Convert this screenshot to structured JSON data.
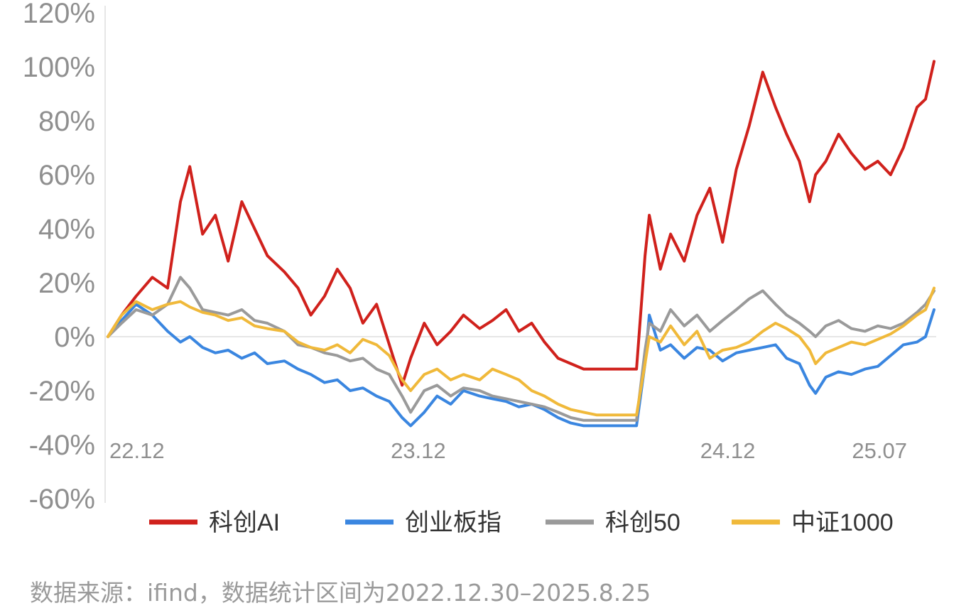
{
  "chart_data": {
    "type": "line",
    "x_ticks": [
      "22.12",
      "23.12",
      "24.12",
      "25.07"
    ],
    "y_ticks": [
      "120%",
      "100%",
      "80%",
      "60%",
      "40%",
      "20%",
      "0%",
      "-20%",
      "-40%",
      "-60%"
    ],
    "ylim": [
      -60,
      120
    ],
    "xlim": [
      "2022-12-30",
      "2025-08-25"
    ],
    "grid": false,
    "legend_position": "bottom",
    "series": [
      {
        "name": "科创AI",
        "color": "#d0211c",
        "x": [
          "2022-12-30",
          "2023-01-15",
          "2023-02-01",
          "2023-02-20",
          "2023-03-10",
          "2023-03-25",
          "2023-04-05",
          "2023-04-20",
          "2023-05-05",
          "2023-05-20",
          "2023-06-05",
          "2023-06-20",
          "2023-07-05",
          "2023-07-25",
          "2023-08-10",
          "2023-08-25",
          "2023-09-10",
          "2023-09-25",
          "2023-10-10",
          "2023-10-25",
          "2023-11-10",
          "2023-11-25",
          "2023-12-10",
          "2023-12-20",
          "2024-01-05",
          "2024-01-20",
          "2024-02-05",
          "2024-02-20",
          "2024-03-10",
          "2024-03-25",
          "2024-04-10",
          "2024-04-25",
          "2024-05-10",
          "2024-05-25",
          "2024-06-10",
          "2024-06-25",
          "2024-07-10",
          "2024-07-25",
          "2024-08-10",
          "2024-08-25",
          "2024-09-10",
          "2024-09-20",
          "2024-09-25",
          "2024-10-08",
          "2024-10-20",
          "2024-11-05",
          "2024-11-20",
          "2024-12-05",
          "2024-12-20",
          "2025-01-05",
          "2025-01-20",
          "2025-02-05",
          "2025-02-20",
          "2025-03-05",
          "2025-03-20",
          "2025-04-01",
          "2025-04-08",
          "2025-04-20",
          "2025-05-05",
          "2025-05-20",
          "2025-06-05",
          "2025-06-20",
          "2025-07-05",
          "2025-07-20",
          "2025-08-05",
          "2025-08-15",
          "2025-08-25"
        ],
        "values": [
          0,
          8,
          15,
          22,
          18,
          50,
          63,
          38,
          45,
          28,
          50,
          40,
          30,
          24,
          18,
          8,
          15,
          25,
          18,
          5,
          12,
          -3,
          -18,
          -8,
          5,
          -3,
          2,
          8,
          3,
          6,
          10,
          2,
          5,
          -2,
          -8,
          -10,
          -12,
          -12,
          -12,
          -12,
          -12,
          30,
          45,
          25,
          38,
          28,
          45,
          55,
          35,
          62,
          78,
          98,
          85,
          75,
          65,
          50,
          60,
          65,
          75,
          68,
          62,
          65,
          60,
          70,
          85,
          88,
          102
        ]
      },
      {
        "name": "创业板指",
        "color": "#3a86e0",
        "x": [
          "2022-12-30",
          "2023-01-15",
          "2023-02-01",
          "2023-02-20",
          "2023-03-10",
          "2023-03-25",
          "2023-04-05",
          "2023-04-20",
          "2023-05-05",
          "2023-05-20",
          "2023-06-05",
          "2023-06-20",
          "2023-07-05",
          "2023-07-25",
          "2023-08-10",
          "2023-08-25",
          "2023-09-10",
          "2023-09-25",
          "2023-10-10",
          "2023-10-25",
          "2023-11-10",
          "2023-11-25",
          "2023-12-10",
          "2023-12-20",
          "2024-01-05",
          "2024-01-20",
          "2024-02-05",
          "2024-02-20",
          "2024-03-10",
          "2024-03-25",
          "2024-04-10",
          "2024-04-25",
          "2024-05-10",
          "2024-05-25",
          "2024-06-10",
          "2024-06-25",
          "2024-07-10",
          "2024-07-25",
          "2024-08-10",
          "2024-08-25",
          "2024-09-10",
          "2024-09-20",
          "2024-09-25",
          "2024-10-08",
          "2024-10-20",
          "2024-11-05",
          "2024-11-20",
          "2024-12-05",
          "2024-12-20",
          "2025-01-05",
          "2025-01-20",
          "2025-02-05",
          "2025-02-20",
          "2025-03-05",
          "2025-03-20",
          "2025-04-01",
          "2025-04-08",
          "2025-04-20",
          "2025-05-05",
          "2025-05-20",
          "2025-06-05",
          "2025-06-20",
          "2025-07-05",
          "2025-07-20",
          "2025-08-05",
          "2025-08-15",
          "2025-08-25"
        ],
        "values": [
          0,
          6,
          12,
          8,
          2,
          -2,
          0,
          -4,
          -6,
          -5,
          -8,
          -6,
          -10,
          -9,
          -12,
          -14,
          -17,
          -16,
          -20,
          -19,
          -22,
          -24,
          -30,
          -33,
          -28,
          -22,
          -25,
          -20,
          -22,
          -23,
          -24,
          -26,
          -25,
          -27,
          -30,
          -32,
          -33,
          -33,
          -33,
          -33,
          -33,
          -10,
          8,
          -5,
          -3,
          -8,
          -4,
          -5,
          -9,
          -6,
          -5,
          -4,
          -3,
          -8,
          -10,
          -18,
          -21,
          -15,
          -13,
          -14,
          -12,
          -11,
          -7,
          -3,
          -2,
          0,
          10
        ]
      },
      {
        "name": "科创50",
        "color": "#9a9a9a",
        "x": [
          "2022-12-30",
          "2023-01-15",
          "2023-02-01",
          "2023-02-20",
          "2023-03-10",
          "2023-03-25",
          "2023-04-05",
          "2023-04-20",
          "2023-05-05",
          "2023-05-20",
          "2023-06-05",
          "2023-06-20",
          "2023-07-05",
          "2023-07-25",
          "2023-08-10",
          "2023-08-25",
          "2023-09-10",
          "2023-09-25",
          "2023-10-10",
          "2023-10-25",
          "2023-11-10",
          "2023-11-25",
          "2023-12-10",
          "2023-12-20",
          "2024-01-05",
          "2024-01-20",
          "2024-02-05",
          "2024-02-20",
          "2024-03-10",
          "2024-03-25",
          "2024-04-10",
          "2024-04-25",
          "2024-05-10",
          "2024-05-25",
          "2024-06-10",
          "2024-06-25",
          "2024-07-10",
          "2024-07-25",
          "2024-08-10",
          "2024-08-25",
          "2024-09-10",
          "2024-09-20",
          "2024-09-25",
          "2024-10-08",
          "2024-10-20",
          "2024-11-05",
          "2024-11-20",
          "2024-12-05",
          "2024-12-20",
          "2025-01-05",
          "2025-01-20",
          "2025-02-05",
          "2025-02-20",
          "2025-03-05",
          "2025-03-20",
          "2025-04-01",
          "2025-04-08",
          "2025-04-20",
          "2025-05-05",
          "2025-05-20",
          "2025-06-05",
          "2025-06-20",
          "2025-07-05",
          "2025-07-20",
          "2025-08-05",
          "2025-08-15",
          "2025-08-25"
        ],
        "values": [
          0,
          5,
          10,
          8,
          12,
          22,
          18,
          10,
          9,
          8,
          10,
          6,
          5,
          2,
          -3,
          -4,
          -6,
          -7,
          -9,
          -8,
          -12,
          -14,
          -22,
          -28,
          -20,
          -18,
          -22,
          -19,
          -20,
          -22,
          -23,
          -24,
          -25,
          -26,
          -28,
          -30,
          -31,
          -31,
          -31,
          -31,
          -31,
          -5,
          5,
          2,
          10,
          4,
          8,
          2,
          6,
          10,
          14,
          17,
          12,
          8,
          5,
          2,
          0,
          4,
          6,
          3,
          2,
          4,
          3,
          5,
          9,
          12,
          17
        ]
      },
      {
        "name": "中证1000",
        "color": "#f0b93a",
        "x": [
          "2022-12-30",
          "2023-01-15",
          "2023-02-01",
          "2023-02-20",
          "2023-03-10",
          "2023-03-25",
          "2023-04-05",
          "2023-04-20",
          "2023-05-05",
          "2023-05-20",
          "2023-06-05",
          "2023-06-20",
          "2023-07-05",
          "2023-07-25",
          "2023-08-10",
          "2023-08-25",
          "2023-09-10",
          "2023-09-25",
          "2023-10-10",
          "2023-10-25",
          "2023-11-10",
          "2023-11-25",
          "2023-12-10",
          "2023-12-20",
          "2024-01-05",
          "2024-01-20",
          "2024-02-05",
          "2024-02-20",
          "2024-03-10",
          "2024-03-25",
          "2024-04-10",
          "2024-04-25",
          "2024-05-10",
          "2024-05-25",
          "2024-06-10",
          "2024-06-25",
          "2024-07-10",
          "2024-07-25",
          "2024-08-10",
          "2024-08-25",
          "2024-09-10",
          "2024-09-20",
          "2024-09-25",
          "2024-10-08",
          "2024-10-20",
          "2024-11-05",
          "2024-11-20",
          "2024-12-05",
          "2024-12-20",
          "2025-01-05",
          "2025-01-20",
          "2025-02-05",
          "2025-02-20",
          "2025-03-05",
          "2025-03-20",
          "2025-04-01",
          "2025-04-08",
          "2025-04-20",
          "2025-05-05",
          "2025-05-20",
          "2025-06-05",
          "2025-06-20",
          "2025-07-05",
          "2025-07-20",
          "2025-08-05",
          "2025-08-15",
          "2025-08-25"
        ],
        "values": [
          0,
          8,
          13,
          10,
          12,
          13,
          11,
          9,
          8,
          6,
          7,
          4,
          3,
          2,
          -2,
          -4,
          -5,
          -3,
          -6,
          -1,
          -3,
          -7,
          -16,
          -20,
          -14,
          -12,
          -16,
          -14,
          -16,
          -12,
          -14,
          -16,
          -20,
          -22,
          -25,
          -27,
          -28,
          -29,
          -29,
          -29,
          -29,
          -10,
          0,
          -2,
          4,
          -3,
          2,
          -8,
          -5,
          -4,
          -2,
          2,
          5,
          3,
          0,
          -5,
          -10,
          -6,
          -4,
          -2,
          -3,
          -1,
          1,
          4,
          8,
          10,
          18
        ]
      }
    ]
  },
  "source_text": "数据来源：ifind，数据统计区间为2022.12.30–2025.8.25"
}
